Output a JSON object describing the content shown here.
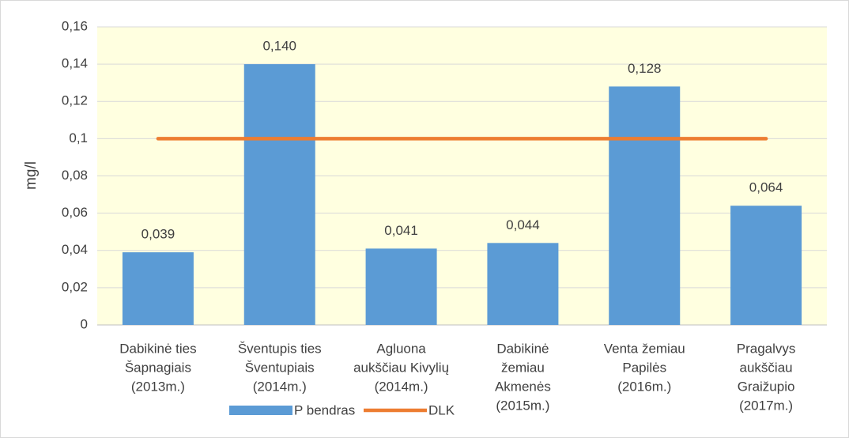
{
  "chart_data": {
    "type": "bar",
    "categories": [
      [
        "Dabikinė ties",
        "Šapnagiais",
        "(2013m.)"
      ],
      [
        "Šventupis ties",
        "Šventupiais",
        "(2014m.)"
      ],
      [
        "Agluona",
        "aukščiau Kivylių",
        "(2014m.)"
      ],
      [
        "Dabikinė",
        "žemiau",
        "Akmenės",
        "(2015m.)"
      ],
      [
        "Venta žemiau",
        "Papilės",
        "(2016m.)"
      ],
      [
        "Pragalvys",
        "aukščiau",
        "Graižupio",
        "(2017m.)"
      ]
    ],
    "series": [
      {
        "name": "P bendras",
        "type": "bar",
        "color": "#5b9bd5",
        "values": [
          0.039,
          0.14,
          0.041,
          0.044,
          0.128,
          0.064
        ],
        "value_labels": [
          "0,039",
          "0,140",
          "0,041",
          "0,044",
          "0,128",
          "0,064"
        ]
      },
      {
        "name": "DLK",
        "type": "line",
        "color": "#ed7d31",
        "values": [
          0.1,
          0.1,
          0.1,
          0.1,
          0.1,
          0.1
        ]
      }
    ],
    "ylabel": "mg/l",
    "ylim": [
      0,
      0.16
    ],
    "yticks": [
      0,
      {
        "value": 0.02,
        "label": "0,02"
      },
      {
        "value": 0.04,
        "label": "0,04"
      },
      {
        "value": 0.06,
        "label": "0,06"
      },
      {
        "value": 0.08,
        "label": "0,08"
      },
      {
        "value": 0.1,
        "label": "0,1"
      },
      {
        "value": 0.12,
        "label": "0,12"
      },
      {
        "value": 0.14,
        "label": "0,14"
      },
      {
        "value": 0.16,
        "label": "0,16"
      }
    ],
    "grid": true,
    "legend": "bottom",
    "plot_background": "#ffffe0"
  }
}
